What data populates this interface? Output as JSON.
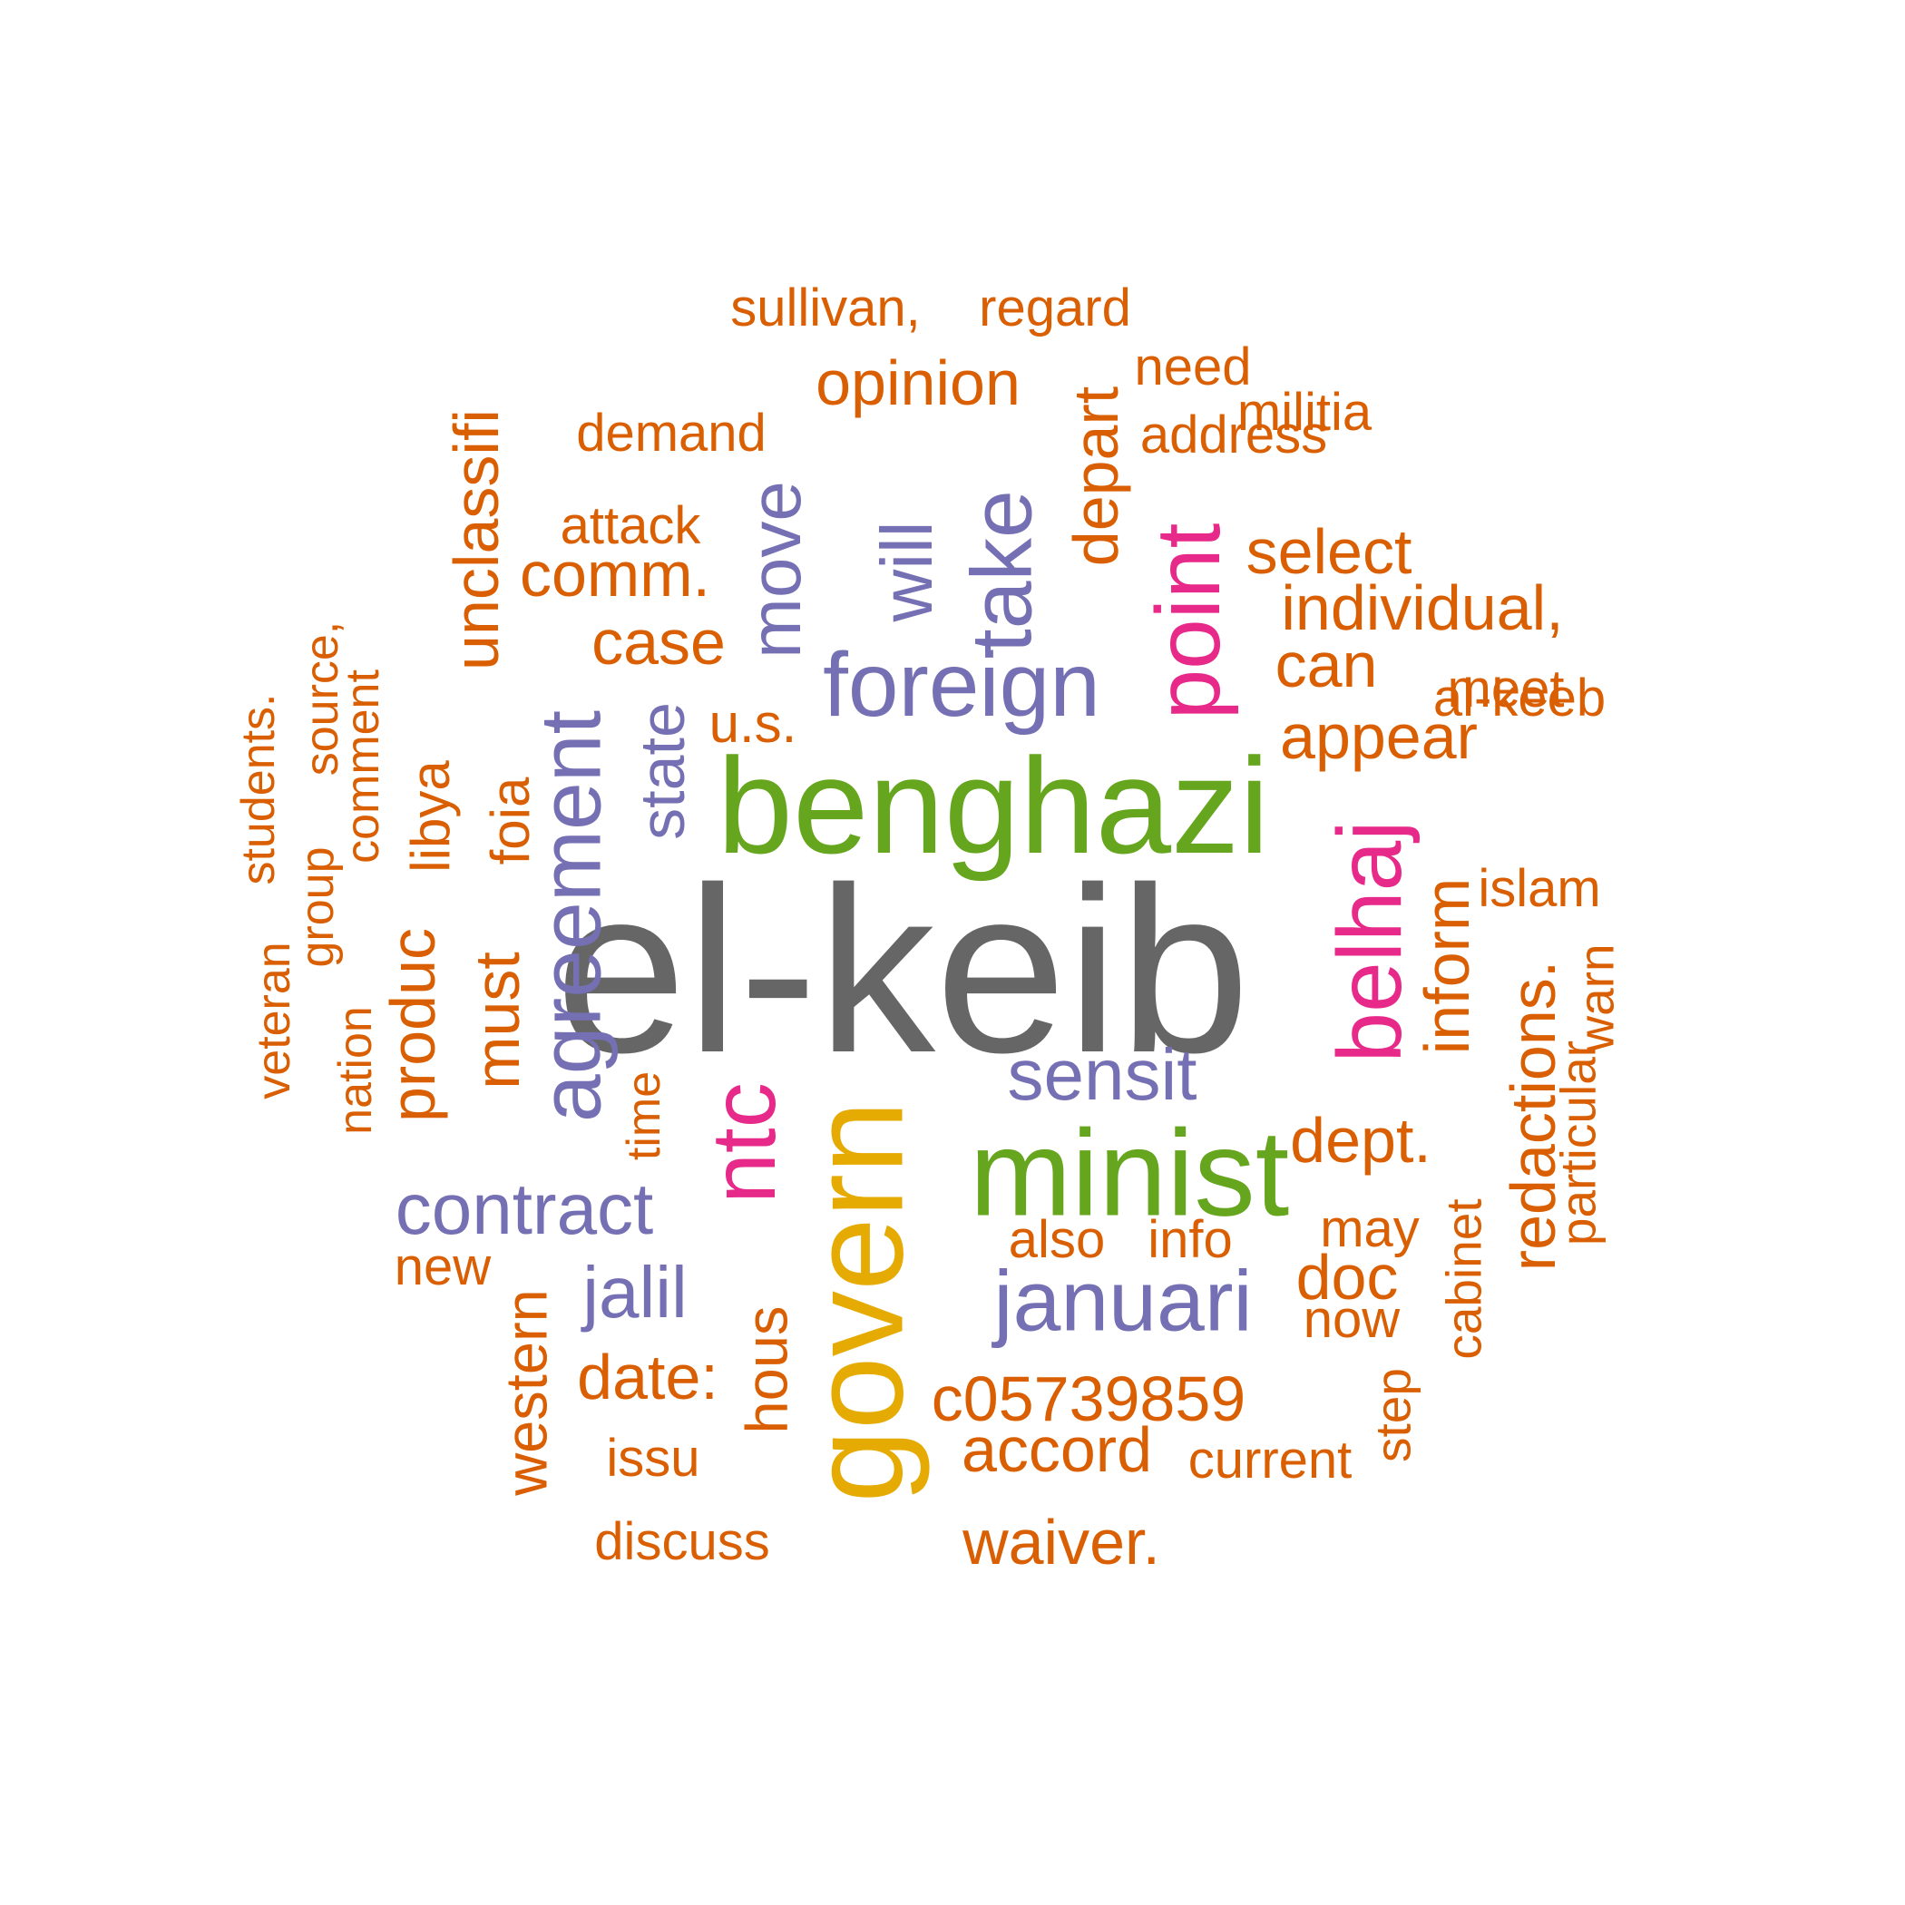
{
  "words": [
    {
      "text": "el-keib",
      "color": "#666666"
    },
    {
      "text": "benghazi",
      "color": "#66a61e"
    },
    {
      "text": "govern",
      "color": "#e6ab02"
    },
    {
      "text": "minist",
      "color": "#66a61e"
    },
    {
      "text": "foreign",
      "color": "#7570b3"
    },
    {
      "text": "belhaj",
      "color": "#e7298a"
    },
    {
      "text": "point",
      "color": "#e7298a"
    },
    {
      "text": "ntc",
      "color": "#e7298a"
    },
    {
      "text": "agreement",
      "color": "#7570b3"
    },
    {
      "text": "take",
      "color": "#7570b3"
    },
    {
      "text": "januari",
      "color": "#7570b3"
    },
    {
      "text": "contract",
      "color": "#7570b3"
    },
    {
      "text": "move",
      "color": "#7570b3"
    },
    {
      "text": "will",
      "color": "#7570b3"
    },
    {
      "text": "sensit",
      "color": "#7570b3"
    },
    {
      "text": "jalil",
      "color": "#7570b3"
    },
    {
      "text": "unclassifi",
      "color": "#d95f02"
    },
    {
      "text": "state",
      "color": "#7570b3"
    },
    {
      "text": "opinion",
      "color": "#d95f02"
    },
    {
      "text": "c05739859",
      "color": "#d95f02"
    },
    {
      "text": "accord",
      "color": "#d95f02"
    },
    {
      "text": "waiver.",
      "color": "#d95f02"
    },
    {
      "text": "comm.",
      "color": "#d95f02"
    },
    {
      "text": "select",
      "color": "#d95f02"
    },
    {
      "text": "individual,",
      "color": "#d95f02"
    },
    {
      "text": "can",
      "color": "#d95f02"
    },
    {
      "text": "appear",
      "color": "#d95f02"
    },
    {
      "text": "dept.",
      "color": "#d95f02"
    },
    {
      "text": "redactions.",
      "color": "#d95f02"
    },
    {
      "text": "inform",
      "color": "#d95f02"
    },
    {
      "text": "case",
      "color": "#d95f02"
    },
    {
      "text": "must",
      "color": "#d95f02"
    },
    {
      "text": "produc",
      "color": "#d95f02"
    },
    {
      "text": "depart",
      "color": "#d95f02"
    },
    {
      "text": "doc",
      "color": "#d95f02"
    },
    {
      "text": "date:",
      "color": "#d95f02"
    },
    {
      "text": "hous",
      "color": "#d95f02"
    },
    {
      "text": "western",
      "color": "#d95f02"
    },
    {
      "text": "foia",
      "color": "#d95f02"
    },
    {
      "text": "libya",
      "color": "#d95f02"
    },
    {
      "text": "u.s.",
      "color": "#d95f02"
    },
    {
      "text": "demand",
      "color": "#d95f02"
    },
    {
      "text": "attack",
      "color": "#d95f02"
    },
    {
      "text": "address",
      "color": "#d95f02"
    },
    {
      "text": "militia",
      "color": "#d95f02"
    },
    {
      "text": "need",
      "color": "#d95f02"
    },
    {
      "text": "sullivan,",
      "color": "#d95f02"
    },
    {
      "text": "regard",
      "color": "#d95f02"
    },
    {
      "text": "al-keeb",
      "color": "#d95f02"
    },
    {
      "text": "islam",
      "color": "#d95f02"
    },
    {
      "text": "meet",
      "color": "#d95f02"
    },
    {
      "text": "particular",
      "color": "#d95f02"
    },
    {
      "text": "warn",
      "color": "#d95f02"
    },
    {
      "text": "cabinet",
      "color": "#d95f02"
    },
    {
      "text": "may",
      "color": "#d95f02"
    },
    {
      "text": "now",
      "color": "#d95f02"
    },
    {
      "text": "step",
      "color": "#d95f02"
    },
    {
      "text": "current",
      "color": "#d95f02"
    },
    {
      "text": "also",
      "color": "#d95f02"
    },
    {
      "text": "info",
      "color": "#d95f02"
    },
    {
      "text": "new",
      "color": "#d95f02"
    },
    {
      "text": "discuss",
      "color": "#d95f02"
    },
    {
      "text": "issu",
      "color": "#d95f02"
    },
    {
      "text": "time",
      "color": "#d95f02"
    },
    {
      "text": "comment",
      "color": "#d95f02"
    },
    {
      "text": "source,",
      "color": "#d95f02"
    },
    {
      "text": "group",
      "color": "#d95f02"
    },
    {
      "text": "students.",
      "color": "#d95f02"
    },
    {
      "text": "veteran",
      "color": "#d95f02"
    },
    {
      "text": "nation",
      "color": "#d95f02"
    }
  ]
}
